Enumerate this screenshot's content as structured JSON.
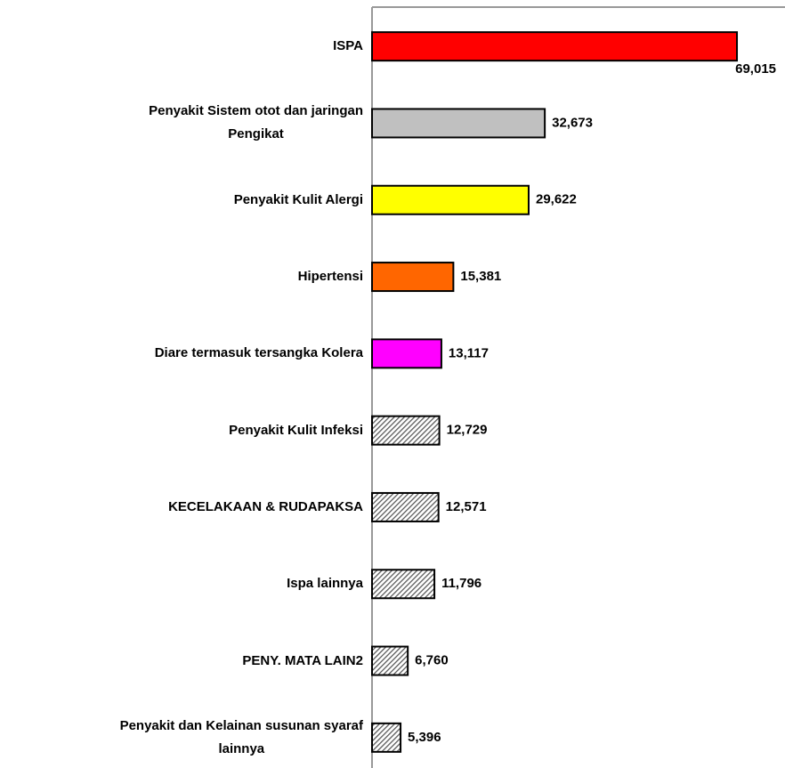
{
  "chart_data": {
    "type": "barh",
    "categories": [
      "ISPA",
      "Penyakit Sistem otot dan jaringan\nPengikat",
      "Penyakit Kulit Alergi",
      "Hipertensi",
      "Diare termasuk tersangka Kolera",
      "Penyakit Kulit Infeksi",
      "KECELAKAAN & RUDAPAKSA",
      "Ispa lainnya",
      "PENY. MATA LAIN2",
      "Penyakit dan Kelainan susunan syaraf\nlainnya"
    ],
    "values": [
      69015,
      32673,
      29622,
      15381,
      13117,
      12729,
      12571,
      11796,
      6760,
      5396
    ],
    "value_labels": [
      "69,015",
      "32,673",
      "29,622",
      "15,381",
      "13,117",
      "12,729",
      "12,571",
      "11,796",
      "6,760",
      "5,396"
    ],
    "colors": [
      "#ff0000",
      "#c0c0c0",
      "#ffff00",
      "#ff6600",
      "#ff00ff",
      "#808080",
      "#808080",
      "#808080",
      "#808080",
      "#808080"
    ],
    "patterns": [
      "solid",
      "solid",
      "solid",
      "solid",
      "solid",
      "hatch",
      "hatch",
      "hatch",
      "hatch",
      "hatch"
    ],
    "xlim": [
      0,
      78100
    ]
  }
}
